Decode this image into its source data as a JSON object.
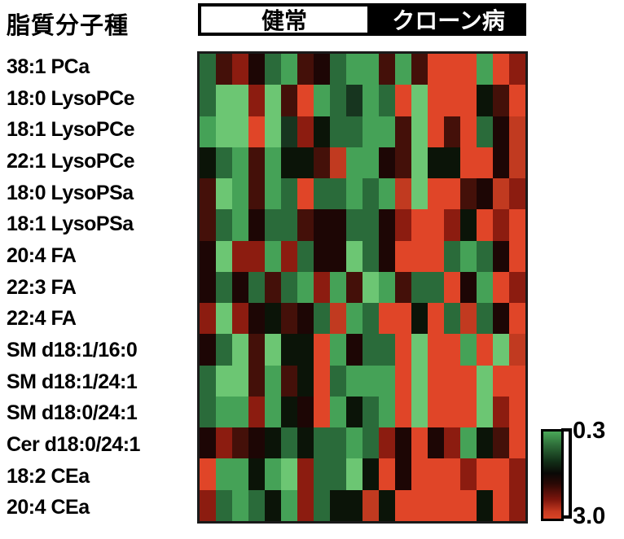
{
  "figure": {
    "title": "脂質分子種",
    "group_healthy_label": "健常",
    "group_crohn_label": "クローン病",
    "colorbar_top_label": "0.3",
    "colorbar_bottom_label": "3.0"
  },
  "chart_data": {
    "type": "heatmap",
    "title": "脂質分子種",
    "row_labels": [
      "38:1 PCa",
      "18:0 LysoPCe",
      "18:1 LysoPCe",
      "22:1 LysoPCe",
      "18:0 LysoPSa",
      "18:1 LysoPSa",
      "20:4 FA",
      "22:3 FA",
      "22:4 FA",
      "SM d18:1/16:0",
      "SM d18:1/24:1",
      "SM d18:0/24:1",
      "Cer d18:0/24:1",
      "18:2 CEa",
      "20:4 CEa"
    ],
    "n_columns": 20,
    "column_groups": [
      {
        "label": "健常",
        "columns": "1-10",
        "header_style": "white-box-black-border"
      },
      {
        "label": "クローン病",
        "columns": "11-20",
        "header_style": "black-box-white-text"
      }
    ],
    "scale": {
      "orientation": "vertical",
      "top_value": 0.3,
      "bottom_value": 3.0,
      "top_color": "green",
      "mid_color": "black",
      "bottom_color": "red"
    },
    "palette": {
      "R": "#e04528",
      "r": "#c13a20",
      "dr": "#8c1c10",
      "m": "#441009",
      "k": "#1d0605",
      "K": "#0b1408",
      "vg": "#17351f",
      "dg": "#2a6b3a",
      "g": "#45a257",
      "G": "#6cc673"
    },
    "value_estimates_by_token": {
      "G": 0.3,
      "g": 0.45,
      "dg": 0.6,
      "vg": 0.8,
      "K": 1.0,
      "k": 1.3,
      "m": 1.6,
      "dr": 2.1,
      "r": 2.6,
      "R": 3.0
    },
    "cells": [
      [
        "dg",
        "m",
        "dr",
        "k",
        "dg",
        "g",
        "m",
        "k",
        "dg",
        "g",
        "g",
        "m",
        "g",
        "m",
        "R",
        "R",
        "R",
        "g",
        "R",
        "dr"
      ],
      [
        "dg",
        "G",
        "G",
        "dr",
        "G",
        "m",
        "R",
        "g",
        "dg",
        "vg",
        "g",
        "dg",
        "R",
        "G",
        "R",
        "R",
        "R",
        "K",
        "m",
        "R"
      ],
      [
        "g",
        "G",
        "G",
        "R",
        "G",
        "vg",
        "dr",
        "K",
        "dg",
        "dg",
        "g",
        "g",
        "m",
        "G",
        "R",
        "m",
        "R",
        "dg",
        "k",
        "r"
      ],
      [
        "K",
        "dg",
        "g",
        "m",
        "g",
        "K",
        "K",
        "m",
        "r",
        "g",
        "g",
        "k",
        "m",
        "G",
        "K",
        "K",
        "R",
        "R",
        "k",
        "r"
      ],
      [
        "m",
        "G",
        "g",
        "m",
        "g",
        "dg",
        "R",
        "dg",
        "dg",
        "g",
        "dg",
        "g",
        "r",
        "G",
        "R",
        "R",
        "m",
        "k",
        "r",
        "dr"
      ],
      [
        "m",
        "dg",
        "g",
        "k",
        "dg",
        "dg",
        "m",
        "k",
        "k",
        "dg",
        "dg",
        "k",
        "dr",
        "R",
        "R",
        "dr",
        "K",
        "R",
        "dr",
        "R"
      ],
      [
        "k",
        "G",
        "dr",
        "dr",
        "g",
        "dr",
        "dg",
        "k",
        "k",
        "G",
        "dg",
        "k",
        "R",
        "R",
        "R",
        "dg",
        "g",
        "dg",
        "k",
        "R"
      ],
      [
        "k",
        "dg",
        "k",
        "dg",
        "m",
        "dg",
        "g",
        "dr",
        "g",
        "m",
        "G",
        "g",
        "m",
        "dg",
        "dg",
        "R",
        "k",
        "g",
        "R",
        "dr"
      ],
      [
        "dr",
        "G",
        "dr",
        "k",
        "K",
        "m",
        "k",
        "dg",
        "r",
        "g",
        "dg",
        "R",
        "R",
        "K",
        "R",
        "dg",
        "r",
        "dg",
        "k",
        "R"
      ],
      [
        "k",
        "dg",
        "G",
        "m",
        "G",
        "K",
        "K",
        "R",
        "g",
        "k",
        "dg",
        "dg",
        "R",
        "G",
        "R",
        "R",
        "g",
        "R",
        "G",
        "r"
      ],
      [
        "dg",
        "G",
        "G",
        "m",
        "g",
        "m",
        "K",
        "R",
        "dg",
        "g",
        "g",
        "g",
        "R",
        "G",
        "R",
        "R",
        "R",
        "G",
        "R",
        "R"
      ],
      [
        "dg",
        "g",
        "g",
        "dr",
        "g",
        "K",
        "k",
        "R",
        "g",
        "K",
        "dg",
        "g",
        "R",
        "G",
        "R",
        "R",
        "R",
        "G",
        "dr",
        "R"
      ],
      [
        "k",
        "dr",
        "m",
        "k",
        "K",
        "dg",
        "K",
        "dg",
        "dg",
        "g",
        "dg",
        "dr",
        "k",
        "R",
        "k",
        "dr",
        "g",
        "K",
        "m",
        "R"
      ],
      [
        "R",
        "g",
        "g",
        "K",
        "g",
        "G",
        "dr",
        "dg",
        "dg",
        "G",
        "K",
        "R",
        "k",
        "R",
        "R",
        "R",
        "dr",
        "R",
        "R",
        "dr"
      ],
      [
        "dr",
        "dg",
        "g",
        "dg",
        "K",
        "g",
        "dr",
        "dg",
        "K",
        "K",
        "r",
        "K",
        "R",
        "R",
        "R",
        "R",
        "R",
        "K",
        "R",
        "dr"
      ]
    ]
  }
}
